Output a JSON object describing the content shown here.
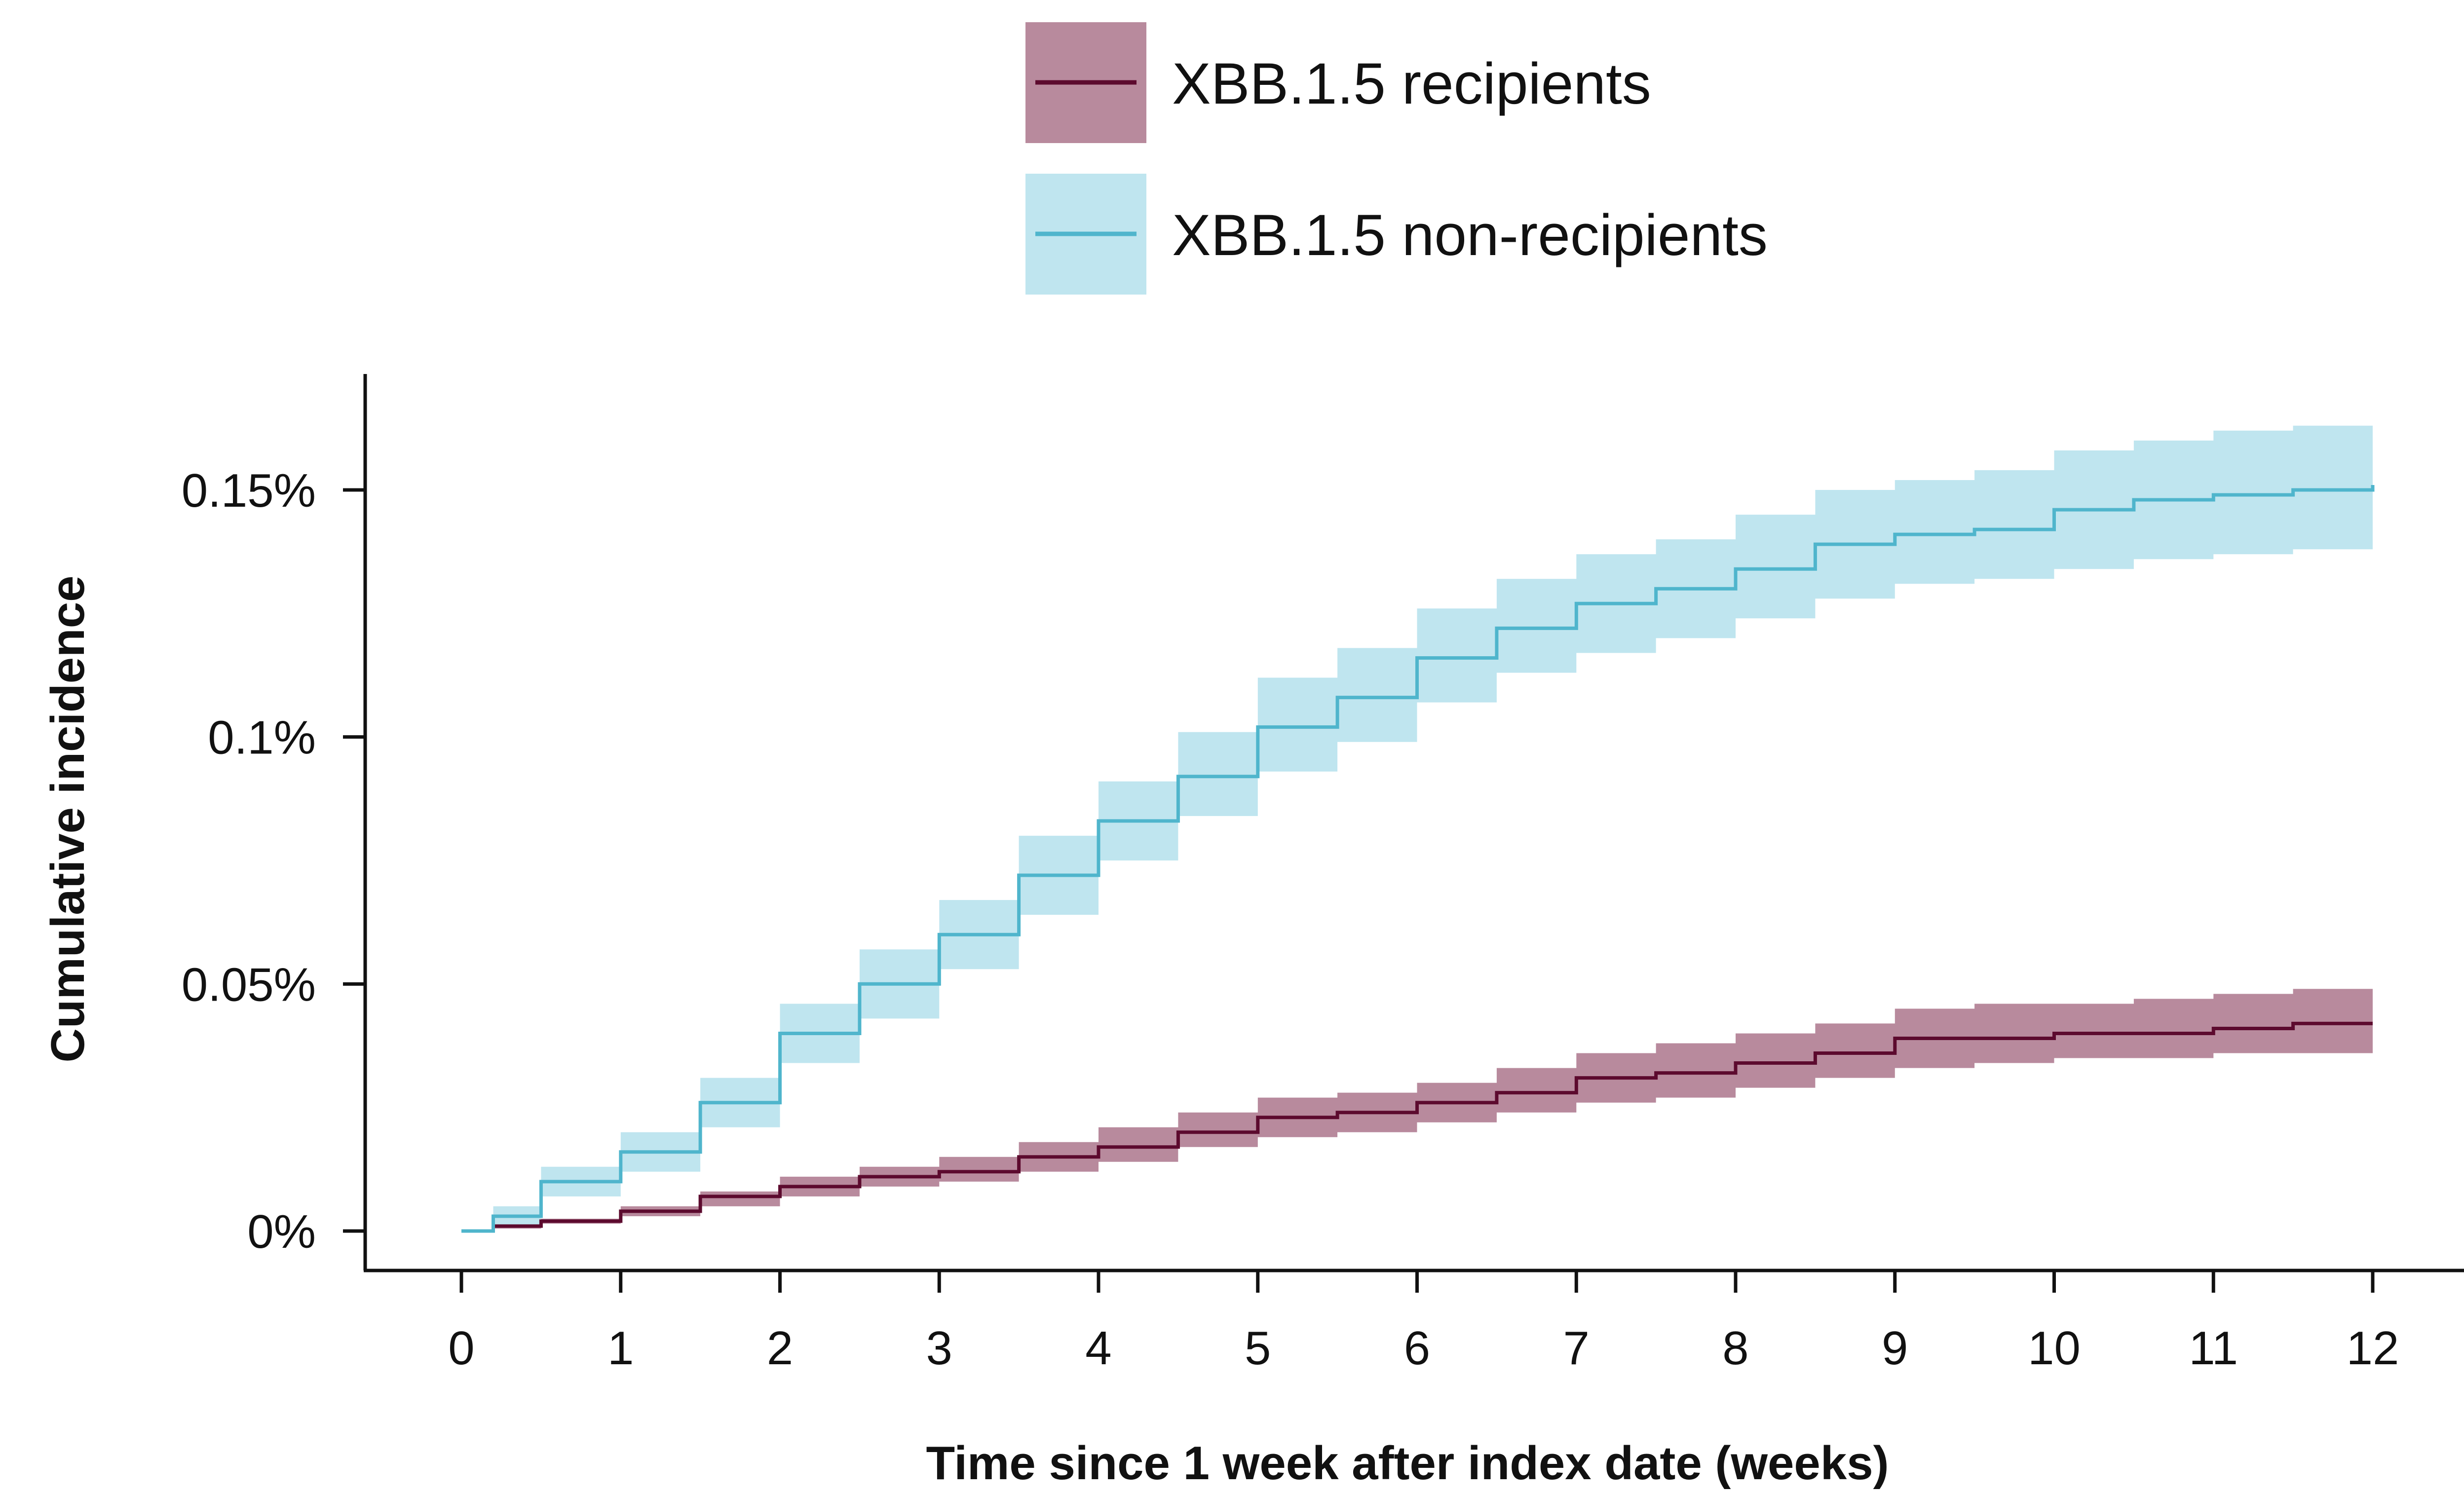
{
  "chart_data": {
    "type": "line",
    "subtype": "step-with-confidence-band",
    "xlabel": "Time since 1 week after index date (weeks)",
    "ylabel": "Cumulative incidence",
    "xlim": [
      0,
      12
    ],
    "ylim": [
      0,
      0.0015
    ],
    "x_ticks": [
      0,
      1,
      2,
      3,
      4,
      5,
      6,
      7,
      8,
      9,
      10,
      11,
      12
    ],
    "x_tick_labels": [
      "0",
      "1",
      "2",
      "3",
      "4",
      "5",
      "6",
      "7",
      "8",
      "9",
      "10",
      "11",
      "12"
    ],
    "y_ticks": [
      0,
      0.0005,
      0.001,
      0.0015
    ],
    "y_tick_labels": [
      "0%",
      "0.05%",
      "0.1%",
      "0.15%"
    ],
    "grid": false,
    "legend_position": "top",
    "series": [
      {
        "name": "XBB.1.5 recipients",
        "line_color": "#5c0a2e",
        "band_color": "#b88a9d",
        "x": [
          0,
          0.2,
          0.5,
          1,
          1.5,
          2,
          2.5,
          3,
          3.5,
          4,
          4.5,
          5,
          5.5,
          6,
          6.5,
          7,
          7.5,
          8,
          8.5,
          9,
          9.5,
          10,
          10.5,
          11,
          11.5,
          12
        ],
        "y": [
          0,
          1e-05,
          2e-05,
          4e-05,
          7e-05,
          9e-05,
          0.00011,
          0.00012,
          0.00015,
          0.00017,
          0.0002,
          0.00023,
          0.00024,
          0.00026,
          0.00028,
          0.00031,
          0.00032,
          0.00034,
          0.00036,
          0.00039,
          0.00039,
          0.0004,
          0.0004,
          0.00041,
          0.00042,
          0.00042
        ],
        "lower": [
          0,
          5e-06,
          1.5e-05,
          3e-05,
          5e-05,
          7e-05,
          9e-05,
          0.0001,
          0.00012,
          0.00014,
          0.00017,
          0.00019,
          0.0002,
          0.00022,
          0.00024,
          0.00026,
          0.00027,
          0.00029,
          0.00031,
          0.00033,
          0.00034,
          0.00035,
          0.00035,
          0.00036,
          0.00036,
          0.00036
        ],
        "upper": [
          0,
          1.5e-05,
          2.5e-05,
          5e-05,
          8e-05,
          0.00011,
          0.00013,
          0.00015,
          0.00018,
          0.00021,
          0.00024,
          0.00027,
          0.00028,
          0.0003,
          0.00033,
          0.00036,
          0.00038,
          0.0004,
          0.00042,
          0.00045,
          0.00046,
          0.00046,
          0.00047,
          0.00048,
          0.00049,
          0.0005
        ]
      },
      {
        "name": "XBB.1.5 non-recipients",
        "line_color": "#4fb5cc",
        "band_color": "#bfe5ef",
        "x": [
          0,
          0.2,
          0.5,
          1,
          1.5,
          2,
          2.5,
          3,
          3.5,
          4,
          4.5,
          5,
          5.5,
          6,
          6.5,
          7,
          7.5,
          8,
          8.5,
          9,
          9.5,
          10,
          10.5,
          11,
          11.5,
          12
        ],
        "y": [
          0,
          3e-05,
          0.0001,
          0.00016,
          0.00026,
          0.0004,
          0.0005,
          0.0006,
          0.00072,
          0.00083,
          0.00092,
          0.00102,
          0.00108,
          0.00116,
          0.00122,
          0.00127,
          0.0013,
          0.00134,
          0.00139,
          0.00141,
          0.00142,
          0.00146,
          0.00148,
          0.00149,
          0.0015,
          0.00151
        ],
        "lower": [
          0,
          1e-05,
          7e-05,
          0.00012,
          0.00021,
          0.00034,
          0.00043,
          0.00053,
          0.00064,
          0.00075,
          0.00084,
          0.00093,
          0.00099,
          0.00107,
          0.00113,
          0.00117,
          0.0012,
          0.00124,
          0.00128,
          0.00131,
          0.00132,
          0.00134,
          0.00136,
          0.00137,
          0.00138,
          0.0014
        ],
        "upper": [
          0,
          5e-05,
          0.00013,
          0.0002,
          0.00031,
          0.00046,
          0.00057,
          0.00067,
          0.0008,
          0.00091,
          0.00101,
          0.00112,
          0.00118,
          0.00126,
          0.00132,
          0.00137,
          0.0014,
          0.00145,
          0.0015,
          0.00152,
          0.00154,
          0.00158,
          0.0016,
          0.00162,
          0.00163,
          0.00164
        ]
      }
    ]
  }
}
